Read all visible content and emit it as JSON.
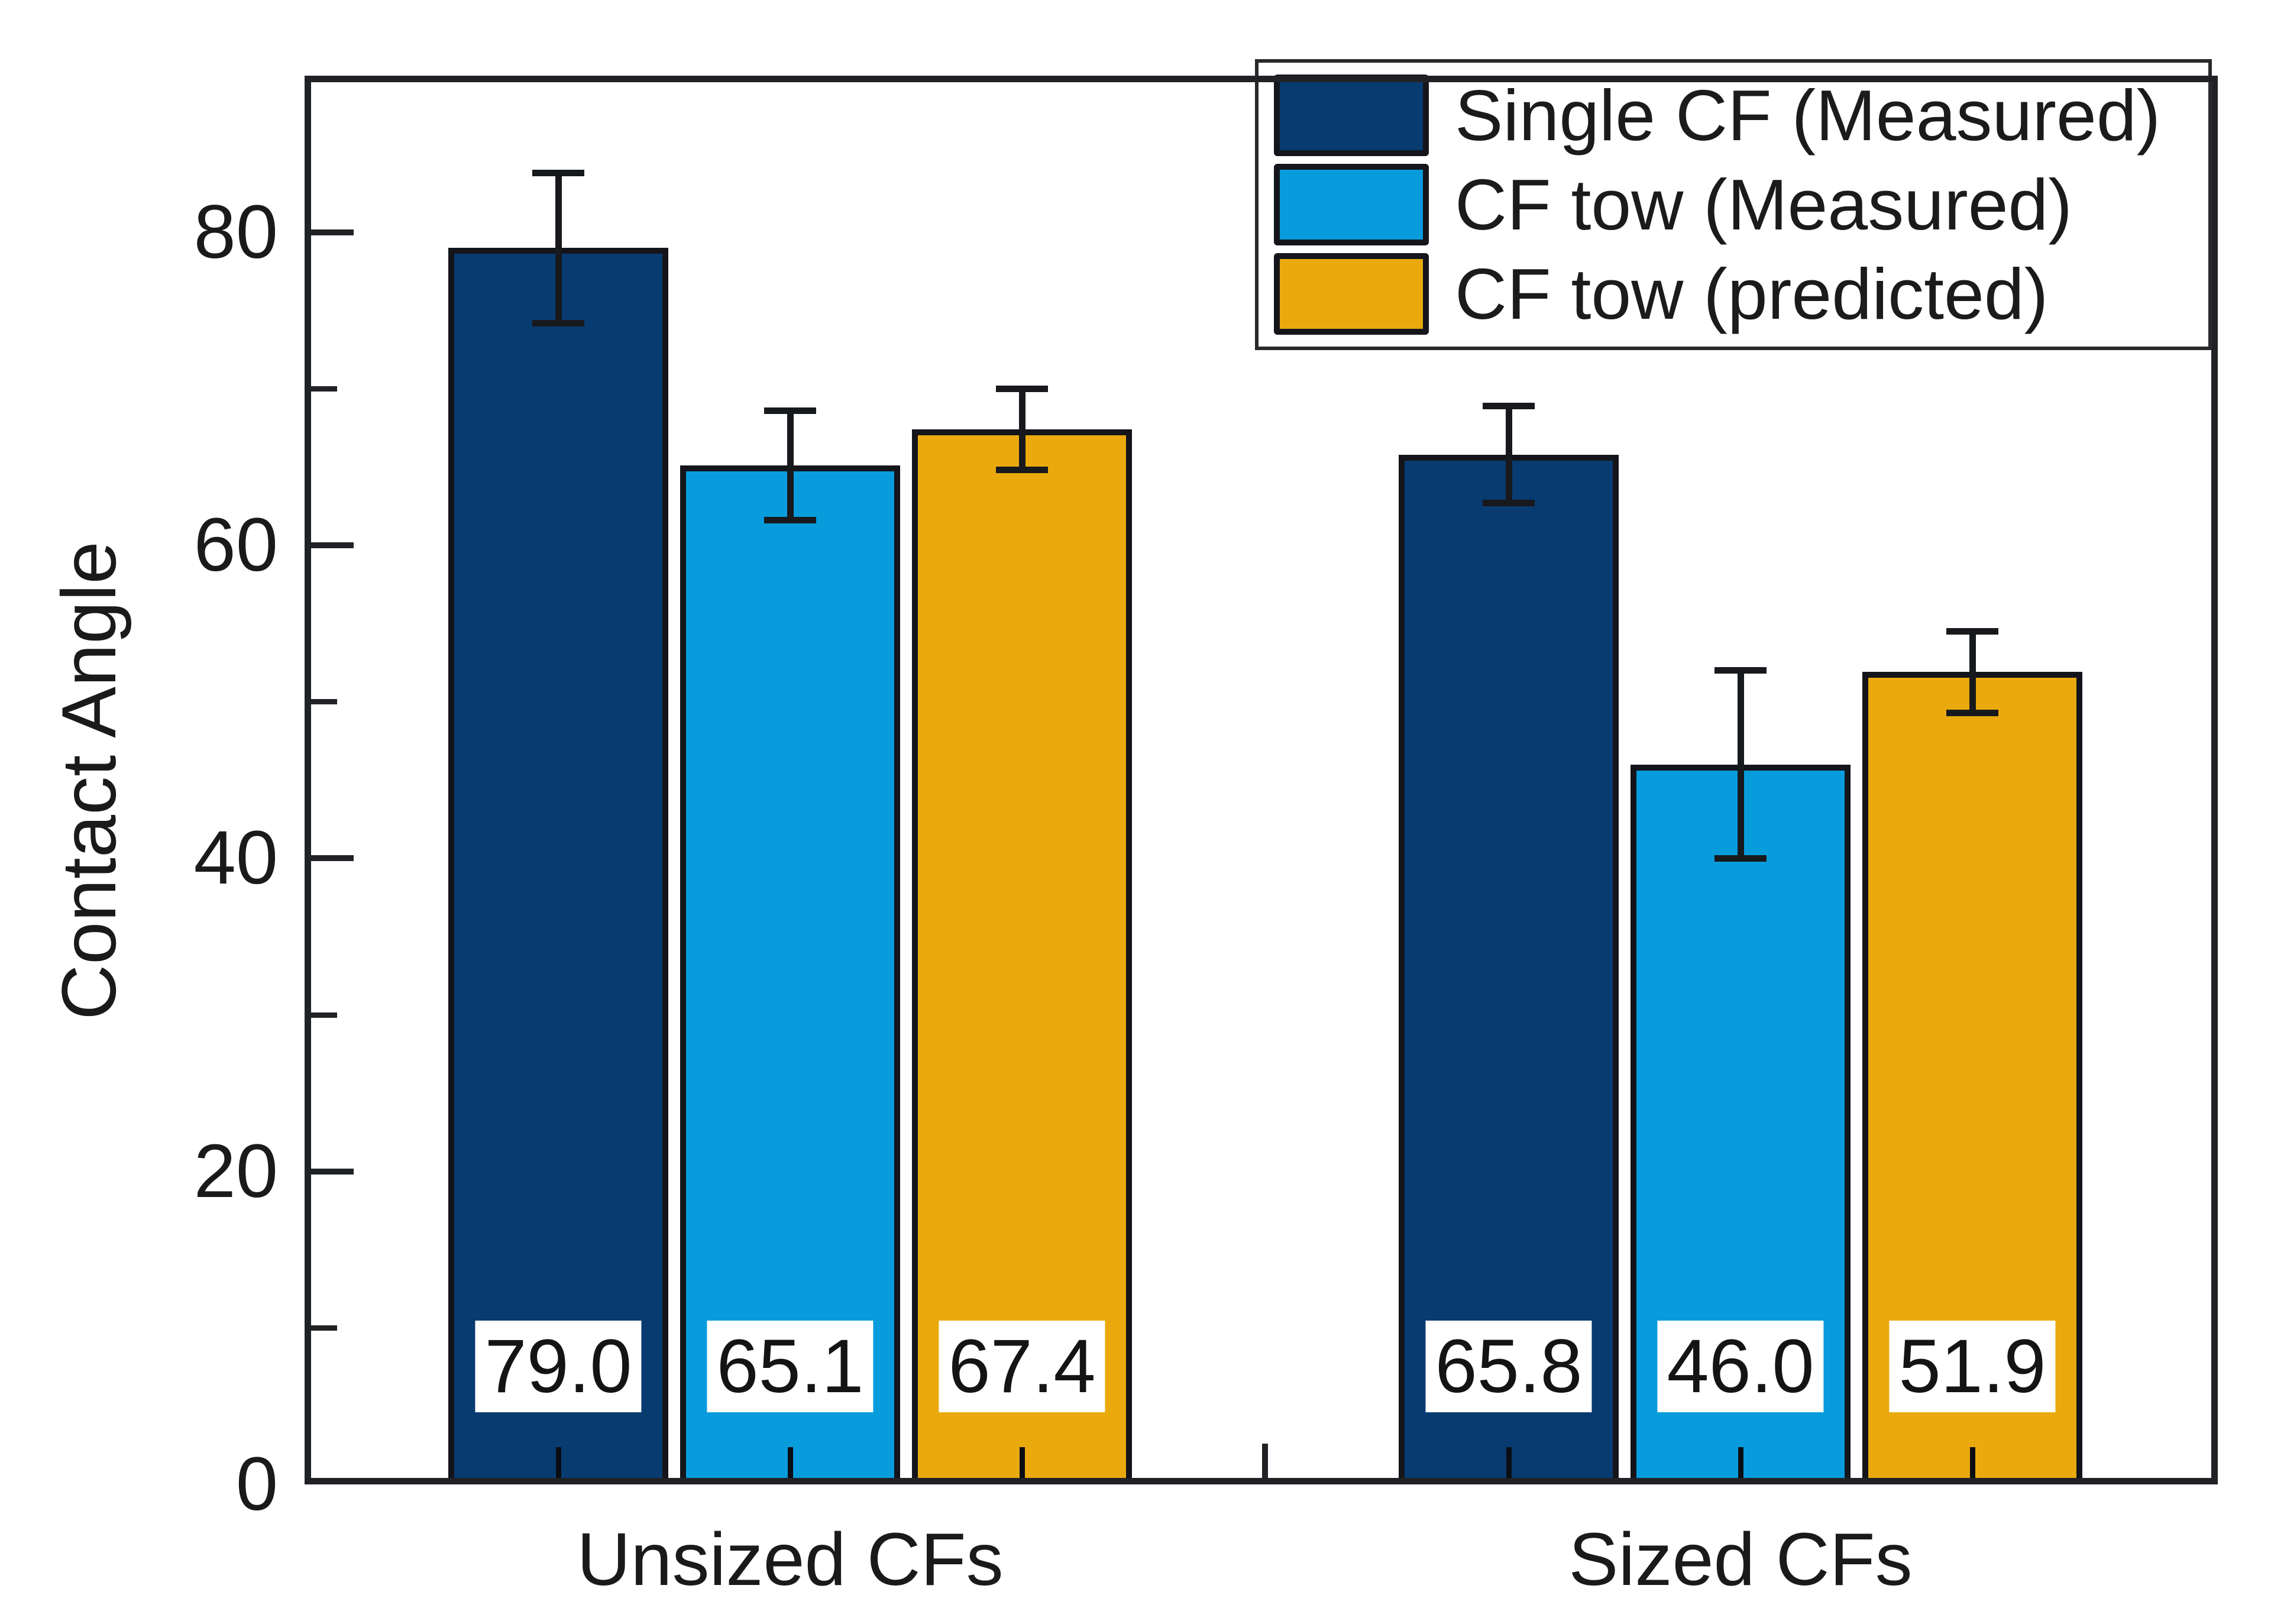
{
  "chart_data": {
    "type": "bar",
    "title": "",
    "xlabel": "",
    "ylabel": "Contact Angle",
    "ylim": [
      0,
      90
    ],
    "yticks_major": [
      0,
      20,
      40,
      60,
      80
    ],
    "yticks_minor": [
      10,
      30,
      50,
      70
    ],
    "grid": false,
    "legend_position": "top-right-inside",
    "categories": [
      "Unsized CFs",
      "Sized CFs"
    ],
    "series": [
      {
        "name": "Single CF (Measured)",
        "color": "#083B70",
        "values": [
          79.0,
          65.8
        ],
        "errors": [
          4.8,
          3.1
        ],
        "labels": [
          "79.0",
          "65.8"
        ]
      },
      {
        "name": "CF tow (Measured)",
        "color": "#089CDD",
        "values": [
          65.1,
          46.0
        ],
        "errors": [
          3.5,
          6.0
        ],
        "labels": [
          "65.1",
          "46.0"
        ]
      },
      {
        "name": "CF tow (predicted)",
        "color": "#EAAA0E",
        "values": [
          67.4,
          51.9
        ],
        "errors": [
          2.6,
          2.6
        ],
        "labels": [
          "67.4",
          "51.9"
        ]
      }
    ],
    "colors": {
      "bar_border": "#14151a",
      "error_bar": "#17191d",
      "axis": "#212226",
      "text": "#1a1a1a",
      "background": "#ffffff",
      "value_label_bg": "#ffffff"
    }
  }
}
